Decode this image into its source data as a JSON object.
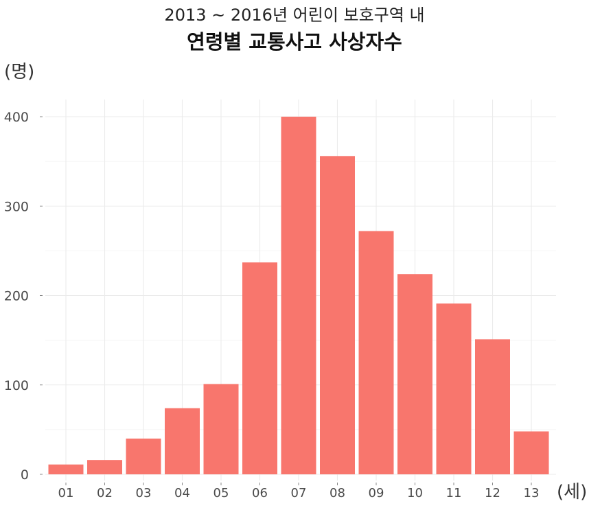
{
  "chart_data": {
    "type": "bar",
    "title": "2013 ~ 2016년 어린이 보호구역 내",
    "subtitle": "연령별 교통사고 사상자수",
    "ylabel": "(명)",
    "xlabel": "(세)",
    "categories": [
      "01",
      "02",
      "03",
      "04",
      "05",
      "06",
      "07",
      "08",
      "09",
      "10",
      "11",
      "12",
      "13"
    ],
    "values": [
      11,
      16,
      40,
      74,
      101,
      237,
      400,
      356,
      272,
      224,
      191,
      151,
      48
    ],
    "ylim": [
      0,
      420
    ],
    "yticks": [
      0,
      100,
      200,
      300,
      400
    ],
    "grid": true,
    "bar_color": "#F8766D",
    "grid_color": "#EBEBEB"
  }
}
